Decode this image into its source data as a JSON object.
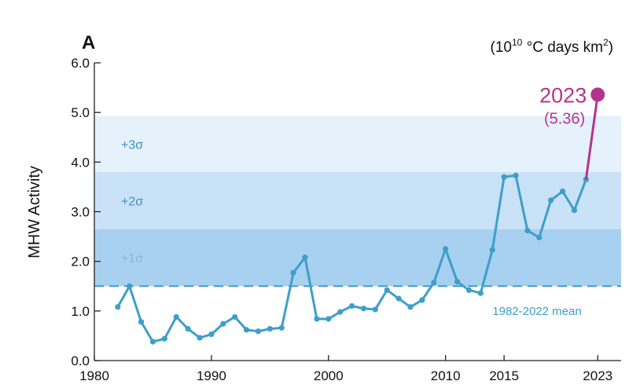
{
  "chart_data": {
    "type": "line",
    "panel_label": "A",
    "unit_label": {
      "prefix": "(10",
      "exponent": "10",
      "middle": " °C days km",
      "sq": "2",
      "suffix": ")"
    },
    "ylabel": "MHW Activity",
    "xlabel": "",
    "xlim": [
      1980,
      2025
    ],
    "ylim": [
      0.0,
      6.0
    ],
    "xticks": [
      1980,
      1990,
      2000,
      2010,
      2015,
      2023
    ],
    "yticks": [
      {
        "value": 0.0,
        "label": "0.0"
      },
      {
        "value": 1.0,
        "label": "1.0"
      },
      {
        "value": 2.0,
        "label": "2.0"
      },
      {
        "value": 3.0,
        "label": "3.0"
      },
      {
        "value": 4.0,
        "label": "4.0"
      },
      {
        "value": 5.0,
        "label": "5.0"
      },
      {
        "value": 6.0,
        "label": "6.0"
      }
    ],
    "grid": false,
    "mean": {
      "value": 1.5,
      "label": "1982-2022 mean"
    },
    "sigma_bands": [
      {
        "label": "+1σ",
        "from": 1.5,
        "to": 2.65,
        "color": "#a8d0f0"
      },
      {
        "label": "+2σ",
        "from": 2.65,
        "to": 3.8,
        "color": "#c9e2f7"
      },
      {
        "label": "+3σ",
        "from": 3.8,
        "to": 4.93,
        "color": "#e5f1fb"
      }
    ],
    "series": [
      {
        "color": "#3d9fc9",
        "x": [
          1982,
          1983,
          1984,
          1985,
          1986,
          1987,
          1988,
          1989,
          1990,
          1991,
          1992,
          1993,
          1994,
          1995,
          1996,
          1997,
          1998,
          1999,
          2000,
          2001,
          2002,
          2003,
          2004,
          2005,
          2006,
          2007,
          2008,
          2009,
          2010,
          2011,
          2012,
          2013,
          2014,
          2015,
          2016,
          2017,
          2018,
          2019,
          2020,
          2021,
          2022
        ],
        "y": [
          1.08,
          1.5,
          0.78,
          0.38,
          0.44,
          0.88,
          0.64,
          0.46,
          0.53,
          0.74,
          0.88,
          0.62,
          0.59,
          0.64,
          0.66,
          1.77,
          2.08,
          0.84,
          0.84,
          0.98,
          1.1,
          1.05,
          1.03,
          1.42,
          1.25,
          1.08,
          1.22,
          1.57,
          2.25,
          1.59,
          1.42,
          1.36,
          2.23,
          3.7,
          3.73,
          2.62,
          2.48,
          3.23,
          3.41,
          3.03,
          3.65
        ]
      }
    ],
    "highlight": {
      "x": 2023,
      "y": 5.36,
      "year_label": "2023",
      "value_label": "(5.36)",
      "color": "#b5338f"
    }
  }
}
